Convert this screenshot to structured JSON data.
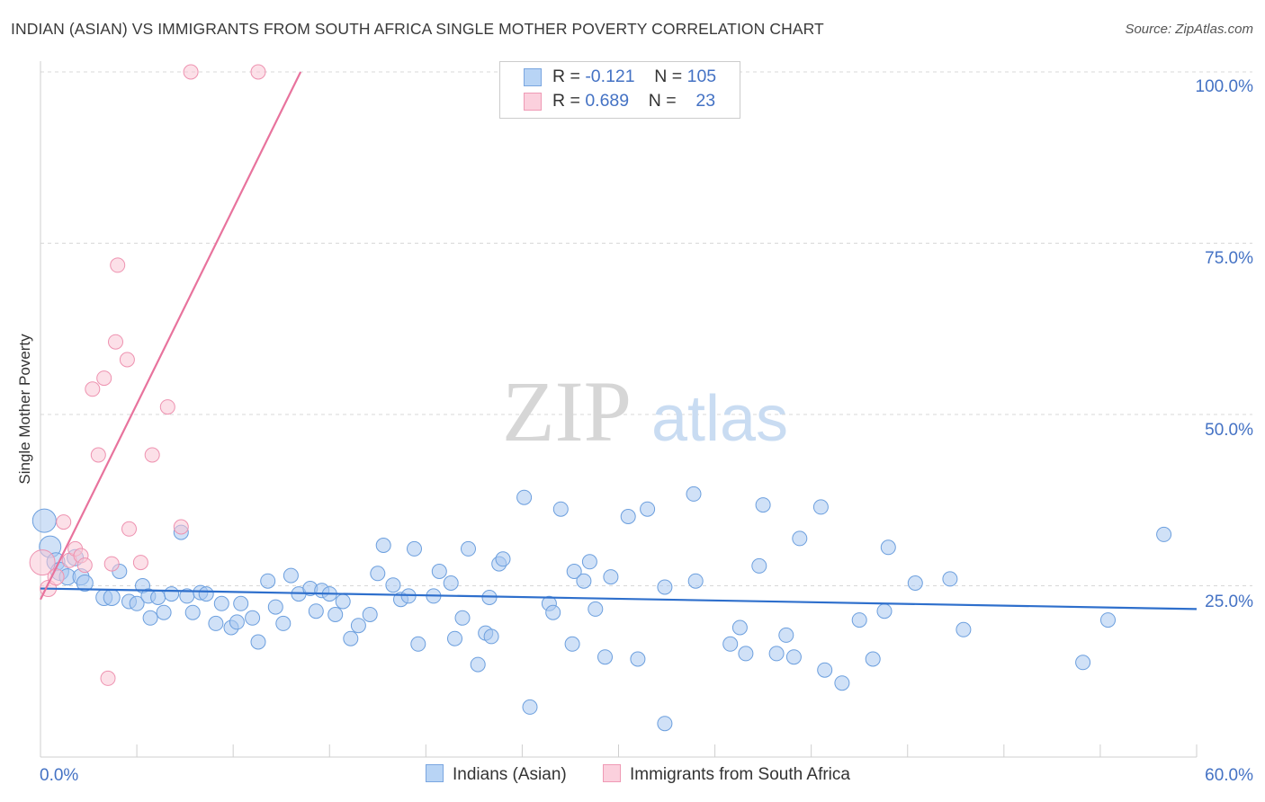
{
  "header": {
    "title": "INDIAN (ASIAN) VS IMMIGRANTS FROM SOUTH AFRICA SINGLE MOTHER POVERTY CORRELATION CHART",
    "source": "Source: ZipAtlas.com"
  },
  "colors": {
    "blue_fill": "#a9c9f0",
    "blue_stroke": "#6c9fde",
    "blue_line": "#2e6fcc",
    "pink_fill": "#f9c6d6",
    "pink_stroke": "#ee92b0",
    "pink_line": "#e8739d",
    "tick_text": "#4472c4",
    "grid": "#d8d8d8"
  },
  "legend": {
    "rows": [
      {
        "r_label": "R =",
        "r_value": "-0.121",
        "n_label": "N =",
        "n_value": "105"
      },
      {
        "r_label": "R =",
        "r_value": "0.689",
        "n_label": "N =",
        "n_value": "23"
      }
    ],
    "bottom": [
      "Indians (Asian)",
      "Immigrants from South Africa"
    ]
  },
  "watermark": {
    "zip": "ZIP",
    "atlas": "atlas"
  },
  "chart_data": {
    "type": "scatter",
    "title": "INDIAN (ASIAN) VS IMMIGRANTS FROM SOUTH AFRICA SINGLE MOTHER POVERTY CORRELATION CHART",
    "xlabel": "",
    "ylabel": "Single Mother Poverty",
    "xlim": [
      0,
      60
    ],
    "ylim": [
      0,
      105
    ],
    "x_tick_labels": [
      "0.0%",
      "60.0%"
    ],
    "y_ticks": [
      25,
      50,
      75,
      100
    ],
    "y_tick_labels": [
      "25.0%",
      "50.0%",
      "75.0%",
      "100.0%"
    ],
    "grid": true,
    "legend_position": "top-center",
    "series": [
      {
        "name": "Indians (Asian)",
        "color": "#a9c9f0",
        "r": -0.121,
        "n": 105,
        "trend": {
          "x": [
            0,
            60
          ],
          "y": [
            24.6,
            21.6
          ]
        },
        "points": [
          [
            0.2,
            34.5,
            13
          ],
          [
            0.5,
            30.7,
            12
          ],
          [
            0.8,
            28.5,
            10
          ],
          [
            1.0,
            27.1,
            10
          ],
          [
            1.4,
            26.3,
            9
          ],
          [
            1.8,
            29.1,
            9
          ],
          [
            2.1,
            26.3,
            9
          ],
          [
            2.3,
            25.4,
            9
          ],
          [
            3.3,
            23.3,
            9
          ],
          [
            3.7,
            23.3,
            9
          ],
          [
            4.1,
            27.1,
            8
          ],
          [
            4.6,
            22.7,
            8
          ],
          [
            5.0,
            22.4,
            8
          ],
          [
            5.3,
            25.0,
            8
          ],
          [
            5.6,
            23.5,
            8
          ],
          [
            5.7,
            20.3,
            8
          ],
          [
            6.1,
            23.3,
            8
          ],
          [
            6.4,
            21.1,
            8
          ],
          [
            6.8,
            23.8,
            8
          ],
          [
            7.3,
            32.8,
            8
          ],
          [
            7.6,
            23.5,
            8
          ],
          [
            7.9,
            21.1,
            8
          ],
          [
            8.3,
            24.0,
            8
          ],
          [
            8.6,
            23.8,
            8
          ],
          [
            9.1,
            19.5,
            8
          ],
          [
            9.4,
            22.4,
            8
          ],
          [
            9.9,
            18.9,
            8
          ],
          [
            10.2,
            19.7,
            8
          ],
          [
            10.4,
            22.4,
            8
          ],
          [
            11.0,
            20.3,
            8
          ],
          [
            11.3,
            16.8,
            8
          ],
          [
            11.8,
            25.7,
            8
          ],
          [
            12.2,
            21.9,
            8
          ],
          [
            12.6,
            19.5,
            8
          ],
          [
            13.0,
            26.5,
            8
          ],
          [
            13.4,
            23.8,
            8
          ],
          [
            14.0,
            24.6,
            8
          ],
          [
            14.3,
            21.3,
            8
          ],
          [
            14.6,
            24.3,
            8
          ],
          [
            15.0,
            23.8,
            8
          ],
          [
            15.3,
            20.8,
            8
          ],
          [
            15.7,
            22.7,
            8
          ],
          [
            16.1,
            17.3,
            8
          ],
          [
            16.5,
            19.2,
            8
          ],
          [
            17.1,
            20.8,
            8
          ],
          [
            17.5,
            26.8,
            8
          ],
          [
            17.8,
            30.9,
            8
          ],
          [
            18.3,
            25.1,
            8
          ],
          [
            18.7,
            23.0,
            8
          ],
          [
            19.1,
            23.5,
            8
          ],
          [
            19.4,
            30.4,
            8
          ],
          [
            19.6,
            16.5,
            8
          ],
          [
            20.4,
            23.5,
            8
          ],
          [
            20.7,
            27.1,
            8
          ],
          [
            21.3,
            25.4,
            8
          ],
          [
            21.5,
            17.3,
            8
          ],
          [
            21.9,
            20.3,
            8
          ],
          [
            22.2,
            30.4,
            8
          ],
          [
            22.7,
            13.5,
            8
          ],
          [
            23.1,
            18.1,
            8
          ],
          [
            23.3,
            23.3,
            8
          ],
          [
            23.4,
            17.6,
            8
          ],
          [
            23.8,
            28.2,
            8
          ],
          [
            24.0,
            28.9,
            8
          ],
          [
            25.1,
            37.9,
            8
          ],
          [
            25.4,
            7.3,
            8
          ],
          [
            26.4,
            22.4,
            8
          ],
          [
            26.6,
            21.1,
            8
          ],
          [
            27.0,
            36.2,
            8
          ],
          [
            27.6,
            16.5,
            8
          ],
          [
            27.7,
            27.1,
            8
          ],
          [
            28.2,
            25.7,
            8
          ],
          [
            28.5,
            28.5,
            8
          ],
          [
            28.8,
            21.6,
            8
          ],
          [
            29.3,
            14.6,
            8
          ],
          [
            29.6,
            26.3,
            8
          ],
          [
            30.5,
            35.1,
            8
          ],
          [
            31.0,
            14.3,
            8
          ],
          [
            31.5,
            36.2,
            8
          ],
          [
            32.4,
            24.8,
            8
          ],
          [
            32.4,
            4.9,
            8
          ],
          [
            33.9,
            38.4,
            8
          ],
          [
            34.0,
            25.7,
            8
          ],
          [
            35.8,
            16.5,
            8
          ],
          [
            36.3,
            18.9,
            8
          ],
          [
            36.6,
            15.1,
            8
          ],
          [
            37.3,
            27.9,
            8
          ],
          [
            37.5,
            36.8,
            8
          ],
          [
            38.2,
            15.1,
            8
          ],
          [
            38.7,
            17.8,
            8
          ],
          [
            39.1,
            14.6,
            8
          ],
          [
            39.4,
            31.9,
            8
          ],
          [
            40.5,
            36.5,
            8
          ],
          [
            40.7,
            12.7,
            8
          ],
          [
            41.6,
            10.8,
            8
          ],
          [
            42.5,
            20.0,
            8
          ],
          [
            43.2,
            14.3,
            8
          ],
          [
            43.8,
            21.3,
            8
          ],
          [
            44.0,
            30.6,
            8
          ],
          [
            45.4,
            25.4,
            8
          ],
          [
            47.2,
            26.0,
            8
          ],
          [
            47.9,
            18.6,
            8
          ],
          [
            54.1,
            13.8,
            8
          ],
          [
            55.4,
            20.0,
            8
          ],
          [
            58.3,
            32.5,
            8
          ]
        ]
      },
      {
        "name": "Immigrants from South Africa",
        "color": "#f9c6d6",
        "r": 0.689,
        "n": 23,
        "trend": {
          "x": [
            0,
            13.5
          ],
          "y": [
            23,
            100
          ]
        },
        "points": [
          [
            0.1,
            28.4,
            14
          ],
          [
            0.4,
            24.6,
            9
          ],
          [
            0.8,
            26.3,
            9
          ],
          [
            1.2,
            34.3,
            8
          ],
          [
            1.5,
            28.7,
            8
          ],
          [
            1.8,
            30.4,
            8
          ],
          [
            2.1,
            29.4,
            8
          ],
          [
            2.3,
            28.0,
            8
          ],
          [
            2.7,
            53.7,
            8
          ],
          [
            3.0,
            44.1,
            8
          ],
          [
            3.3,
            55.3,
            8
          ],
          [
            3.5,
            11.5,
            8
          ],
          [
            3.7,
            28.2,
            8
          ],
          [
            3.9,
            60.6,
            8
          ],
          [
            4.0,
            71.8,
            8
          ],
          [
            4.5,
            58.0,
            8
          ],
          [
            4.6,
            33.3,
            8
          ],
          [
            5.2,
            28.4,
            8
          ],
          [
            5.8,
            44.1,
            8
          ],
          [
            6.6,
            51.1,
            8
          ],
          [
            7.3,
            33.6,
            8
          ],
          [
            7.8,
            100.0,
            8
          ],
          [
            11.3,
            100.0,
            8
          ]
        ]
      }
    ]
  }
}
